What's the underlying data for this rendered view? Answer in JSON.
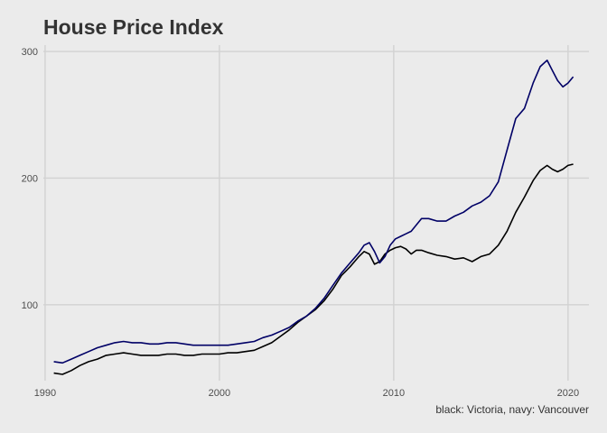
{
  "chart_data": {
    "type": "line",
    "title": "House Price Index",
    "caption": "black: Victoria, navy: Vancouver",
    "xlabel": "",
    "ylabel": "",
    "xlim": [
      1989.9,
      2021.2
    ],
    "ylim": [
      40,
      305
    ],
    "x_ticks": [
      1990,
      2000,
      2010,
      2020
    ],
    "y_ticks": [
      100,
      200,
      300
    ],
    "x_tick_labels": [
      "1990",
      "2000",
      "2010",
      "2020"
    ],
    "y_tick_labels": [
      "100",
      "200",
      "300"
    ],
    "grid": true,
    "legend": "none",
    "series": [
      {
        "color": "#000000",
        "x": [
          1990.5,
          1991.0,
          1991.5,
          1992.0,
          1992.5,
          1993.0,
          1993.5,
          1994.0,
          1994.5,
          1995.0,
          1995.5,
          1996.0,
          1996.5,
          1997.0,
          1997.5,
          1998.0,
          1998.5,
          1999.0,
          1999.5,
          2000.0,
          2000.5,
          2001.0,
          2001.5,
          2002.0,
          2002.5,
          2003.0,
          2003.5,
          2004.0,
          2004.5,
          2005.0,
          2005.5,
          2006.0,
          2006.5,
          2007.0,
          2007.5,
          2008.0,
          2008.3,
          2008.6,
          2008.9,
          2009.2,
          2009.5,
          2009.8,
          2010.1,
          2010.4,
          2010.7,
          2011.0,
          2011.3,
          2011.6,
          2012.0,
          2012.5,
          2013.0,
          2013.5,
          2014.0,
          2014.5,
          2015.0,
          2015.5,
          2016.0,
          2016.5,
          2017.0,
          2017.5,
          2018.0,
          2018.4,
          2018.8,
          2019.1,
          2019.4,
          2019.7,
          2020.0,
          2020.3
        ],
        "y": [
          46,
          45,
          48,
          52,
          55,
          57,
          60,
          61,
          62,
          61,
          60,
          60,
          60,
          61,
          61,
          60,
          60,
          61,
          61,
          61,
          62,
          62,
          63,
          64,
          67,
          70,
          75,
          80,
          86,
          91,
          96,
          103,
          112,
          123,
          130,
          138,
          142,
          140,
          132,
          134,
          140,
          143,
          145,
          146,
          144,
          140,
          143,
          143,
          141,
          139,
          138,
          136,
          137,
          134,
          138,
          140,
          147,
          158,
          173,
          185,
          198,
          206,
          210,
          207,
          205,
          207,
          210,
          211
        ]
      },
      {
        "color": "#000066",
        "x": [
          1990.5,
          1991.0,
          1991.5,
          1992.0,
          1992.5,
          1993.0,
          1993.5,
          1994.0,
          1994.5,
          1995.0,
          1995.5,
          1996.0,
          1996.5,
          1997.0,
          1997.5,
          1998.0,
          1998.5,
          1999.0,
          1999.5,
          2000.0,
          2000.5,
          2001.0,
          2001.5,
          2002.0,
          2002.5,
          2003.0,
          2003.5,
          2004.0,
          2004.5,
          2005.0,
          2005.5,
          2006.0,
          2006.5,
          2007.0,
          2007.5,
          2008.0,
          2008.3,
          2008.6,
          2008.9,
          2009.2,
          2009.5,
          2009.8,
          2010.1,
          2010.4,
          2010.7,
          2011.0,
          2011.3,
          2011.6,
          2012.0,
          2012.5,
          2013.0,
          2013.5,
          2014.0,
          2014.5,
          2015.0,
          2015.5,
          2016.0,
          2016.5,
          2017.0,
          2017.5,
          2018.0,
          2018.4,
          2018.8,
          2019.1,
          2019.4,
          2019.7,
          2020.0,
          2020.3
        ],
        "y": [
          55,
          54,
          57,
          60,
          63,
          66,
          68,
          70,
          71,
          70,
          70,
          69,
          69,
          70,
          70,
          69,
          68,
          68,
          68,
          68,
          68,
          69,
          70,
          71,
          74,
          76,
          79,
          82,
          87,
          91,
          97,
          105,
          115,
          125,
          133,
          141,
          147,
          149,
          142,
          133,
          138,
          147,
          152,
          154,
          156,
          158,
          163,
          168,
          168,
          166,
          166,
          170,
          173,
          178,
          181,
          186,
          197,
          222,
          247,
          255,
          275,
          288,
          293,
          285,
          277,
          272,
          275,
          280
        ]
      }
    ]
  }
}
